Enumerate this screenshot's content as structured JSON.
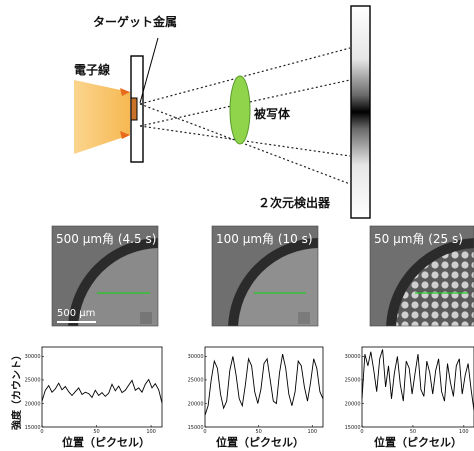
{
  "diagram": {
    "target_metal_label": "ターゲット金属",
    "electron_beam_label": "電子線",
    "object_label": "被写体",
    "detector_label": "２次元検出器"
  },
  "panels": [
    {
      "title": "500 μm角 (4.5 s)",
      "scale_label": "500 μm"
    },
    {
      "title": "100 μm角 (10 s)"
    },
    {
      "title": "50 μm角 (25 s)"
    }
  ],
  "plots": {
    "ylabel": "強度（カウント）",
    "xlabel": "位置（ピクセル）"
  },
  "colors": {
    "beam": "#f7c163",
    "target": "#c8722a",
    "object": "#8fd44b",
    "profile_line": "#22cc22",
    "arrow": "#e86a1c"
  },
  "chart_data": [
    {
      "type": "line",
      "xlim": [
        0,
        110
      ],
      "ylim": [
        15000,
        32000
      ],
      "x_ticks": [
        "0",
        "50",
        "100"
      ],
      "y_ticks": [
        "15000",
        "20000",
        "25000",
        "30000"
      ],
      "xlabel": "位置（ピクセル）",
      "ylabel": "強度（カウント）",
      "series": [
        {
          "values": [
            20500,
            22800,
            23800,
            22400,
            23100,
            24300,
            22900,
            23600,
            22500,
            21700,
            22500,
            23300,
            21900,
            22400,
            22100,
            21300,
            22800,
            21700,
            22300,
            21500,
            22200,
            24100,
            22700,
            23700,
            22300,
            22800,
            23900,
            24900,
            22800,
            23300,
            22400,
            24100,
            25100,
            23300,
            24200,
            22900,
            20100
          ]
        }
      ]
    },
    {
      "type": "line",
      "xlim": [
        0,
        110
      ],
      "ylim": [
        15000,
        32000
      ],
      "x_ticks": [
        "0",
        "50",
        "100"
      ],
      "y_ticks": [
        "15000",
        "20000",
        "25000",
        "30000"
      ],
      "xlabel": "位置（ピクセル）",
      "series": [
        {
          "values": [
            17500,
            19500,
            25000,
            29000,
            27500,
            22000,
            19000,
            20500,
            27000,
            30000,
            26000,
            21000,
            19500,
            24000,
            29500,
            28000,
            22500,
            20000,
            23000,
            28500,
            29500,
            25000,
            20500,
            20000,
            26500,
            30500,
            27500,
            22000,
            19500,
            22500,
            29000,
            28000,
            23500,
            20500,
            24500,
            29500,
            27500,
            22500,
            21000
          ]
        }
      ]
    },
    {
      "type": "line",
      "xlim": [
        0,
        110
      ],
      "ylim": [
        15000,
        32000
      ],
      "x_ticks": [
        "0",
        "50",
        "100"
      ],
      "y_ticks": [
        "15000",
        "20000",
        "25000",
        "30000"
      ],
      "xlabel": "位置（ピクセル）",
      "series": [
        {
          "values": [
            21000,
            30500,
            28000,
            31000,
            27000,
            22500,
            29500,
            31500,
            23500,
            28000,
            21000,
            26500,
            30000,
            24000,
            20500,
            29000,
            27500,
            22000,
            26500,
            30500,
            23000,
            21500,
            29000,
            26500,
            22000,
            27000,
            29500,
            22500,
            20500,
            28500,
            24500,
            21500,
            28000,
            29500,
            22000,
            26000,
            28500,
            23000,
            18500
          ]
        }
      ]
    }
  ]
}
